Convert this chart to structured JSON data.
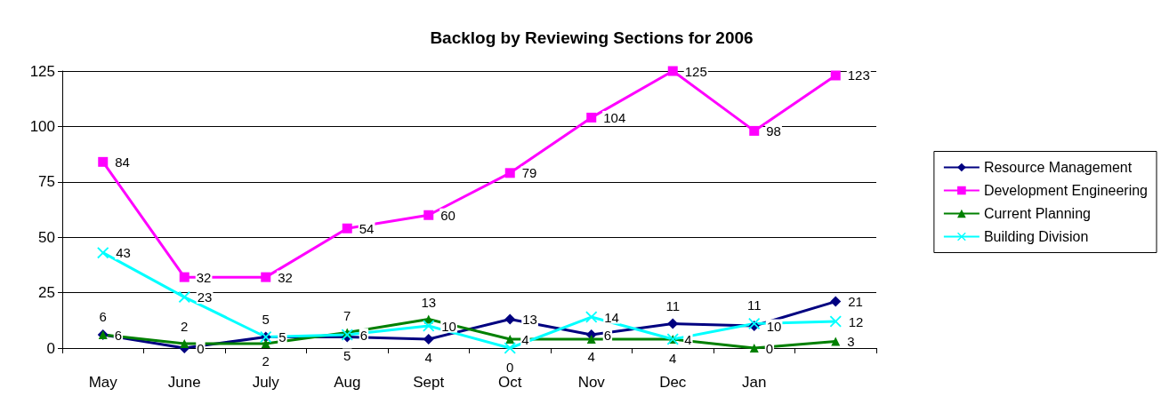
{
  "chart_data": {
    "type": "line",
    "title": "Backlog by Reviewing Sections for 2006",
    "categories": [
      "May",
      "June",
      "July",
      "Aug",
      "Sept",
      "Oct",
      "Nov",
      "Dec",
      "Jan",
      null
    ],
    "series": [
      {
        "name": "Resource Management",
        "color": "#000080",
        "marker": "diamond",
        "values": [
          6,
          0,
          5,
          5,
          4,
          13,
          6,
          11,
          10,
          21
        ]
      },
      {
        "name": "Development Engineering",
        "color": "#ff00ff",
        "marker": "square",
        "values": [
          84,
          32,
          32,
          54,
          60,
          79,
          104,
          125,
          98,
          123
        ]
      },
      {
        "name": "Current Planning",
        "color": "#008000",
        "marker": "triangle",
        "values": [
          6,
          2,
          2,
          7,
          13,
          4,
          4,
          4,
          0,
          3
        ]
      },
      {
        "name": "Building Division",
        "color": "#00ffff",
        "marker": "cross",
        "values": [
          43,
          23,
          5,
          6,
          10,
          0,
          14,
          4,
          11,
          12
        ]
      }
    ],
    "ylim": [
      0,
      125
    ],
    "yticks": [
      0,
      25,
      50,
      75,
      100,
      125
    ],
    "grid": "y",
    "legend": "right",
    "data_labels": true
  }
}
